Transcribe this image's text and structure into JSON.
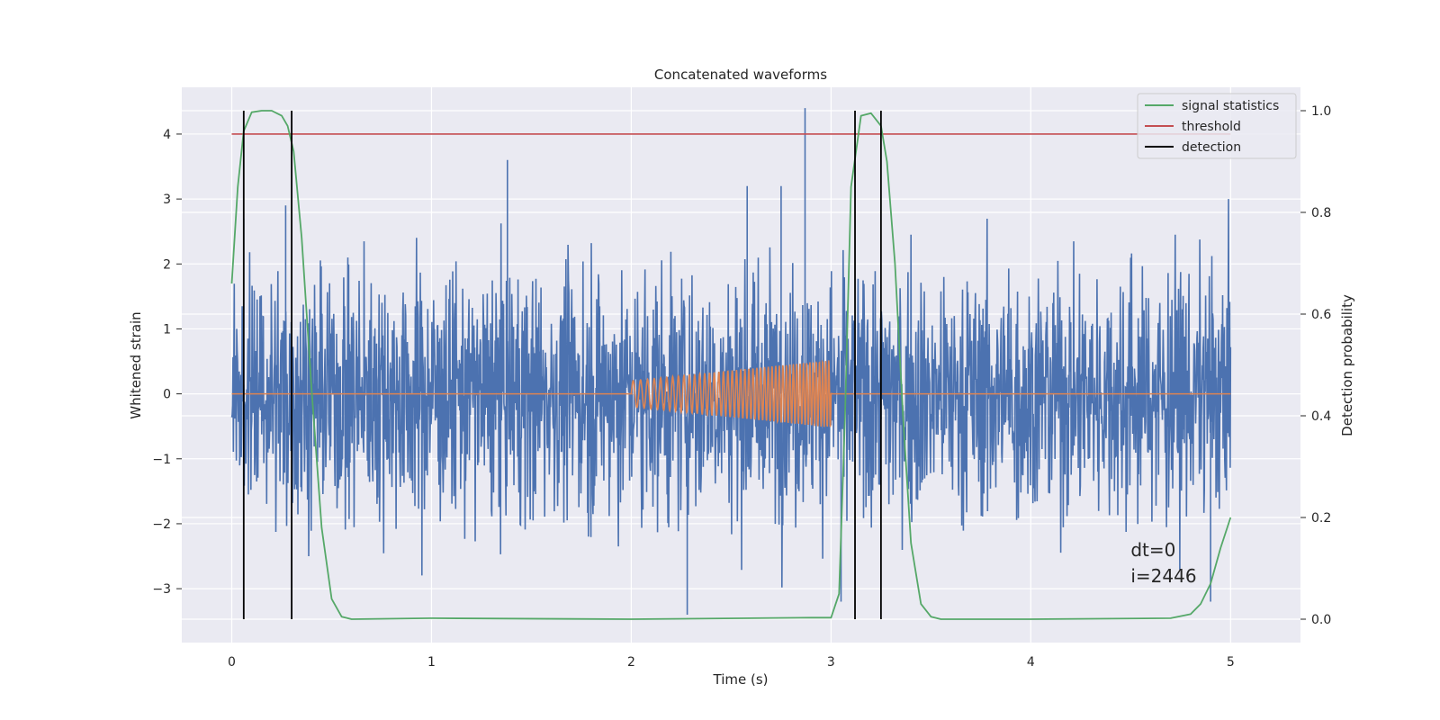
{
  "chart_data": {
    "type": "line",
    "title": "Concatenated waveforms",
    "xlabel": "Time (s)",
    "ylabel_left": "Whitened strain",
    "ylabel_right": "Detection probability",
    "xlim": [
      -0.25,
      5.35
    ],
    "ylim_left": [
      -3.83,
      4.72
    ],
    "ylim_right": [
      -0.046,
      1.046
    ],
    "x_ticks": [
      0,
      1,
      2,
      3,
      4,
      5
    ],
    "y_ticks_left": [
      -3,
      -2,
      -1,
      0,
      1,
      2,
      3,
      4
    ],
    "y_ticks_right": [
      0.0,
      0.2,
      0.4,
      0.6,
      0.8,
      1.0
    ],
    "grid": true,
    "legend": {
      "position": "top-right",
      "entries": [
        {
          "label": "signal statistics",
          "color": "#55a868"
        },
        {
          "label": "threshold",
          "color": "#c44e52"
        },
        {
          "label": "detection",
          "color": "#000000"
        }
      ]
    },
    "series": [
      {
        "role": "noisy strain",
        "axis": "left",
        "color": "#4c72b0",
        "x_range": [
          0,
          5
        ],
        "typical_amplitude": 1.3,
        "notable_peaks": [
          {
            "x": 0.06,
            "y": 2.7
          },
          {
            "x": 0.27,
            "y": 2.9
          },
          {
            "x": 1.38,
            "y": 3.6
          },
          {
            "x": 2.28,
            "y": -3.4
          },
          {
            "x": 2.58,
            "y": 3.2
          },
          {
            "x": 2.75,
            "y": 3.2
          },
          {
            "x": 2.87,
            "y": 4.4
          },
          {
            "x": 3.05,
            "y": -3.2
          },
          {
            "x": 4.9,
            "y": -3.2
          }
        ]
      },
      {
        "role": "injected chirp",
        "axis": "left",
        "color": "#dd8452",
        "x_range": [
          0,
          5
        ],
        "chirp_start": 2.0,
        "chirp_end": 3.0,
        "start_amplitude": 0.2,
        "end_amplitude": 0.52
      },
      {
        "name": "signal statistics",
        "axis": "right",
        "color": "#55a868",
        "x": [
          0,
          0.03,
          0.06,
          0.1,
          0.15,
          0.2,
          0.25,
          0.28,
          0.31,
          0.35,
          0.4,
          0.45,
          0.5,
          0.55,
          0.6,
          1.0,
          2.0,
          2.9,
          3.0,
          3.04,
          3.07,
          3.1,
          3.15,
          3.2,
          3.25,
          3.28,
          3.32,
          3.36,
          3.4,
          3.45,
          3.5,
          3.55,
          4.0,
          4.7,
          4.8,
          4.85,
          4.9,
          4.95,
          5.0
        ],
        "y": [
          0.66,
          0.85,
          0.96,
          0.997,
          1.0,
          1.0,
          0.99,
          0.97,
          0.92,
          0.75,
          0.45,
          0.18,
          0.04,
          0.005,
          0.0,
          0.002,
          0.0,
          0.003,
          0.003,
          0.05,
          0.4,
          0.85,
          0.99,
          0.995,
          0.97,
          0.9,
          0.7,
          0.4,
          0.15,
          0.03,
          0.005,
          0.0,
          0.0,
          0.002,
          0.01,
          0.03,
          0.07,
          0.14,
          0.2
        ]
      },
      {
        "name": "threshold",
        "axis": "left",
        "color": "#c44e52",
        "x": [
          0,
          5
        ],
        "y": [
          4,
          4
        ]
      }
    ],
    "detections": [
      {
        "x": 0.06,
        "ymin": 0.0,
        "ymax": 1.0
      },
      {
        "x": 0.3,
        "ymin": 0.0,
        "ymax": 1.0
      },
      {
        "x": 3.12,
        "ymin": 0.0,
        "ymax": 1.0
      },
      {
        "x": 3.25,
        "ymin": 0.0,
        "ymax": 1.0
      }
    ],
    "annotations": [
      {
        "text": "dt=0",
        "x": 4.5,
        "y": -2.5
      },
      {
        "text": "i=2446",
        "x": 4.5,
        "y": -2.9
      }
    ]
  }
}
